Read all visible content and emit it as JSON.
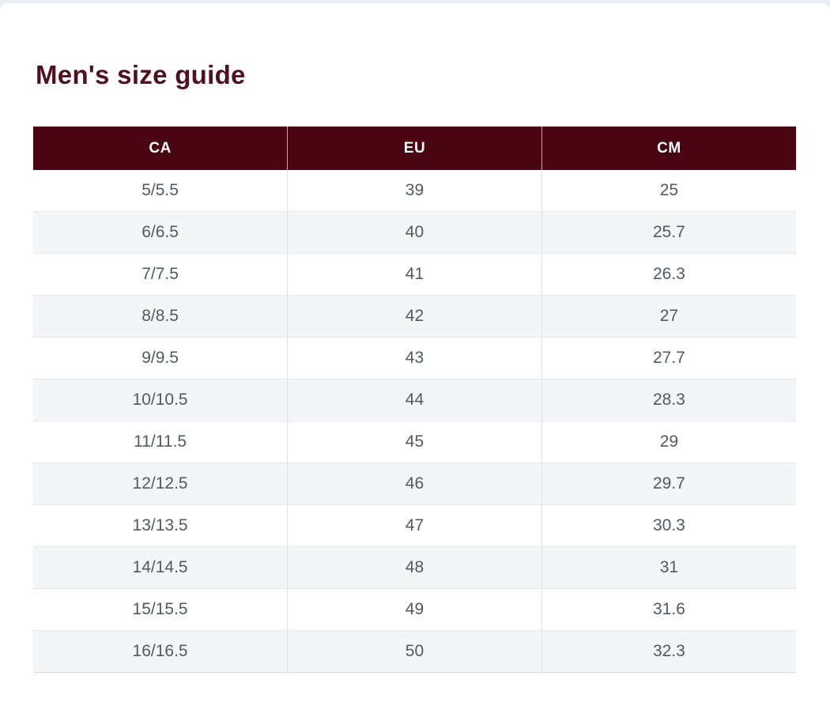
{
  "page": {
    "title": "Men's size guide"
  },
  "table": {
    "columns": [
      "CA",
      "EU",
      "CM"
    ],
    "rows": [
      [
        "5/5.5",
        "39",
        "25"
      ],
      [
        "6/6.5",
        "40",
        "25.7"
      ],
      [
        "7/7.5",
        "41",
        "26.3"
      ],
      [
        "8/8.5",
        "42",
        "27"
      ],
      [
        "9/9.5",
        "43",
        "27.7"
      ],
      [
        "10/10.5",
        "44",
        "28.3"
      ],
      [
        "11/11.5",
        "45",
        "29"
      ],
      [
        "12/12.5",
        "46",
        "29.7"
      ],
      [
        "13/13.5",
        "47",
        "30.3"
      ],
      [
        "14/14.5",
        "48",
        "31"
      ],
      [
        "15/15.5",
        "49",
        "31.6"
      ],
      [
        "16/16.5",
        "50",
        "32.3"
      ]
    ]
  },
  "colors": {
    "title_color": "#501021",
    "header_bg": "#490511",
    "header_text": "#ffffff",
    "cell_text": "#54585f",
    "stripe_bg": "#f4f5f7",
    "row_border": "#e7e7ea",
    "col_border": "#e2e2e6",
    "bottom_border": "#d9d9dc"
  }
}
